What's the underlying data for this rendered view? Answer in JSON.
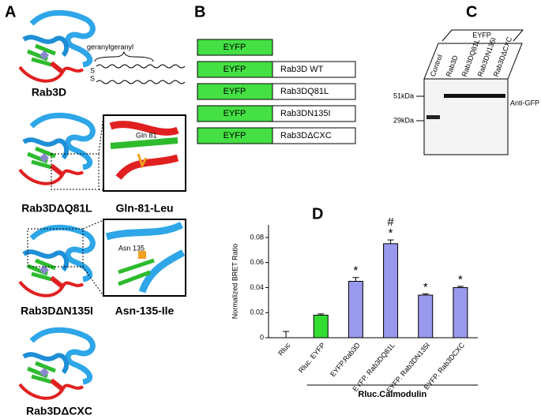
{
  "panels": {
    "a": {
      "label": "A",
      "lipid": "geranylgeranyl",
      "sulfur": [
        "S",
        "S"
      ],
      "structures": [
        {
          "name": "Rab3D"
        },
        {
          "name": "Rab3DΔQ81L",
          "zoom_title": "Gln-81-Leu",
          "residue": "Gln 81"
        },
        {
          "name": "Rab3DΔN135I",
          "zoom_title": "Asn-135-Ile",
          "residue": "Asn 135"
        },
        {
          "name": "Rab3DΔCXC"
        }
      ]
    },
    "b": {
      "label": "B",
      "tag": "EYFP",
      "constructs": [
        "Rab3D WT",
        "Rab3DQ81L",
        "Rab3DN135I",
        "Rab3DΔCXC"
      ]
    },
    "c": {
      "label": "C",
      "group": "EYFP",
      "lanes": [
        "Control",
        "Rab3D",
        "Rab3DQ81L",
        "Rab3DN135I",
        "Rab3DΔCXC"
      ],
      "markers": [
        "51kDa",
        "29kDa"
      ],
      "antibody": "Anti-GFP"
    }
  },
  "chart_data": {
    "type": "bar",
    "panel_label": "D",
    "ylabel": "Normalized BRET Ratio",
    "xlabel": "Rluc.Calmodulin",
    "categories": [
      "Rluc",
      "Rluc. EYFP",
      "EYFP.Rab3D",
      "EYFP. Rab3DQ81L",
      "EYFP. Rab3DN135I",
      "EYFP. Rab3DCXC"
    ],
    "values": [
      0,
      0.018,
      0.045,
      0.075,
      0.034,
      0.04
    ],
    "errors": [
      0.005,
      0.001,
      0.003,
      0.003,
      0.001,
      0.001
    ],
    "colors": [
      "#ffffff",
      "#33dd33",
      "#9999ee",
      "#9999ee",
      "#9999ee",
      "#9999ee"
    ],
    "significance": [
      [],
      [],
      [
        "*"
      ],
      [
        "#",
        "*"
      ],
      [
        "*"
      ],
      [
        "*"
      ]
    ],
    "ylim": [
      0,
      0.09
    ],
    "yticks": [
      0,
      0.02,
      0.04,
      0.06,
      0.08
    ]
  }
}
